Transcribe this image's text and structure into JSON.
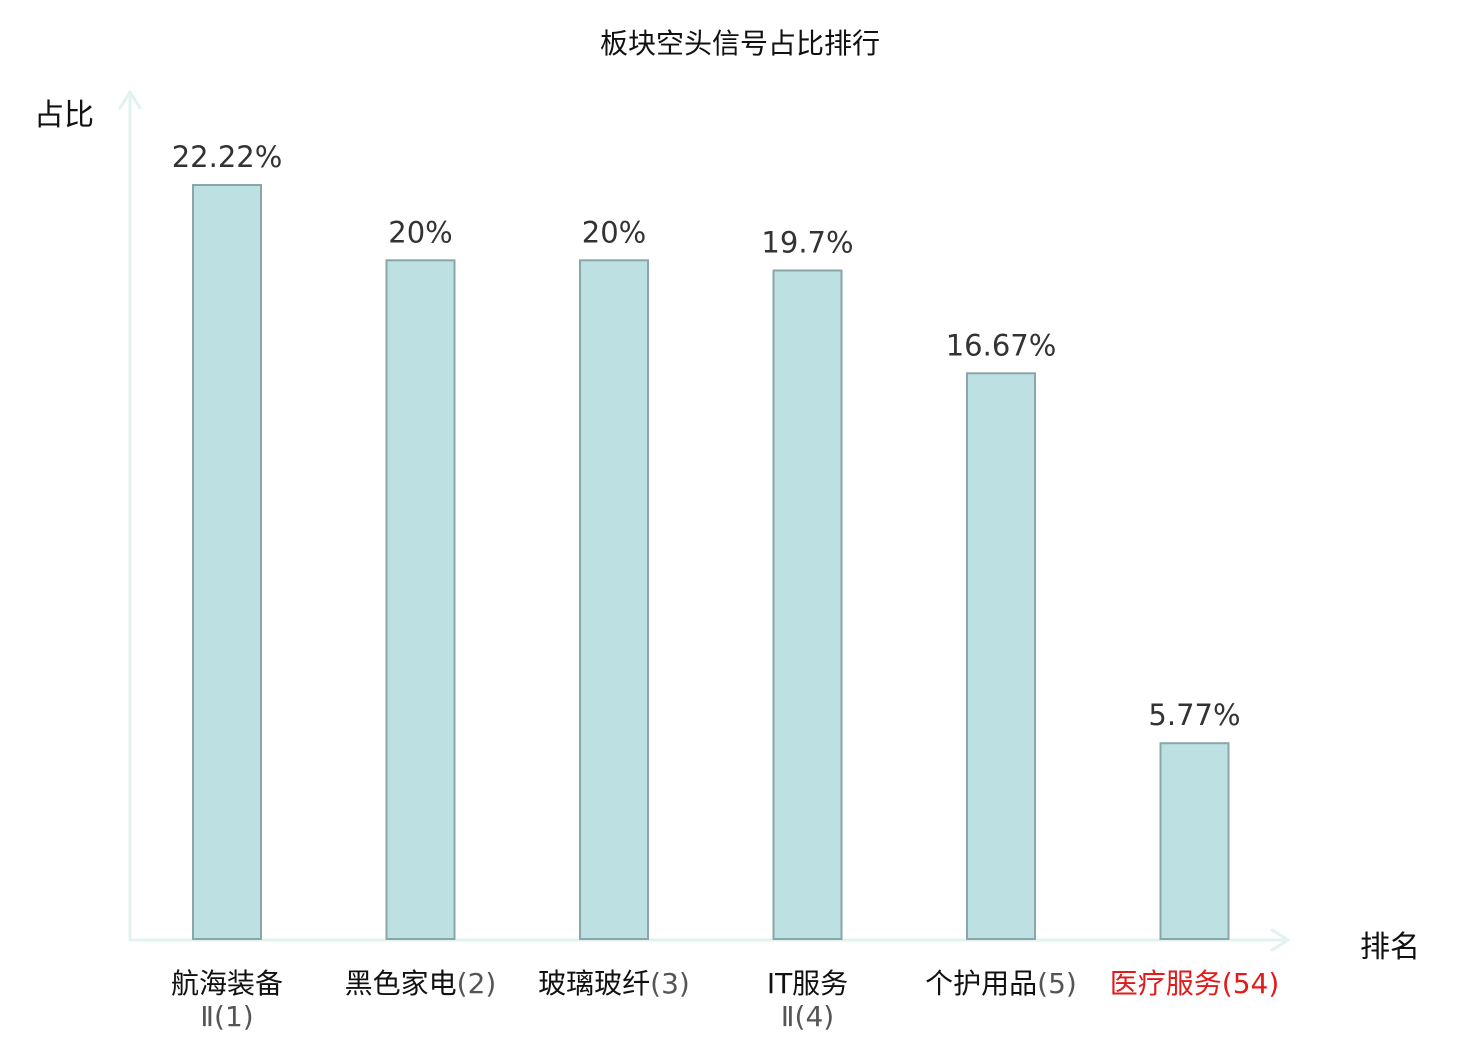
{
  "chart_data": {
    "type": "bar",
    "title": "板块空头信号占比排行",
    "xlabel": "排名",
    "ylabel": "占比",
    "ylim": [
      0,
      25
    ],
    "grid": false,
    "legend": "none",
    "categories": [
      {
        "name": "航海装备Ⅱ",
        "rank": "(1)",
        "highlight": false
      },
      {
        "name": "黑色家电",
        "rank": "(2)",
        "highlight": false
      },
      {
        "name": "玻璃玻纤",
        "rank": "(3)",
        "highlight": false
      },
      {
        "name": "IT服务Ⅱ",
        "rank": "(4)",
        "highlight": false
      },
      {
        "name": "个护用品",
        "rank": "(5)",
        "highlight": false
      },
      {
        "name": "医疗服务",
        "rank": "(54)",
        "highlight": true
      }
    ],
    "values": [
      22.22,
      20,
      20,
      19.7,
      16.67,
      5.77
    ],
    "value_labels": [
      "22.22%",
      "20%",
      "20%",
      "19.7%",
      "16.67%",
      "5.77%"
    ]
  },
  "colors": {
    "bar_fill": "#bde0e3",
    "bar_stroke": "#8aa6a8",
    "axis": "#e0f3f1",
    "label_text": "#333333",
    "category_text": "#111111",
    "rank_text": "#555555",
    "highlight": "#e31a1a"
  }
}
